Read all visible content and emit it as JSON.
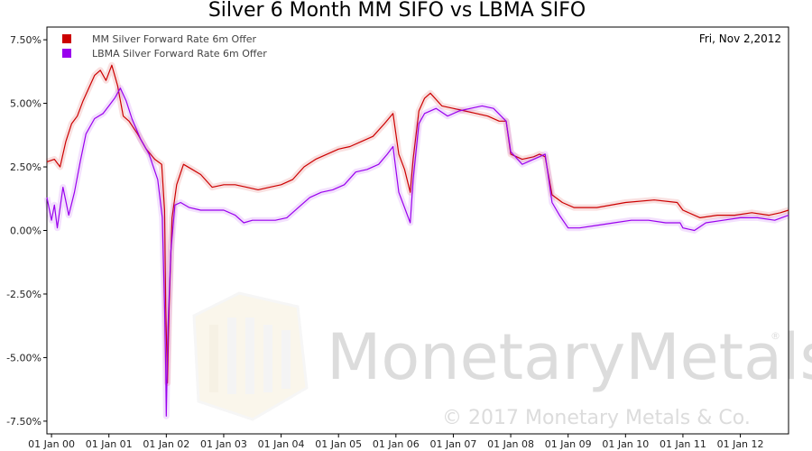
{
  "chart_data": {
    "type": "line",
    "title": "Silver 6 Month MM SIFO vs LBMA SIFO",
    "date_label": "Fri, Nov 2,2012",
    "xlabel": "",
    "ylabel": "",
    "x_range": [
      "1999-12-01",
      "2012-11-02"
    ],
    "ylim": [
      -8.0,
      8.0
    ],
    "y_ticks": [
      "7.50%",
      "5.00%",
      "2.50%",
      "0.00%",
      "-2.50%",
      "-5.00%",
      "-7.50%"
    ],
    "y_tick_values": [
      7.5,
      5.0,
      2.5,
      0.0,
      -2.5,
      -5.0,
      -7.5
    ],
    "x_ticks": [
      "01 Jan 00",
      "01 Jan 01",
      "01 Jan 02",
      "01 Jan 03",
      "01 Jan 04",
      "01 Jan 05",
      "01 Jan 06",
      "01 Jan 07",
      "01 Jan 08",
      "01 Jan 09",
      "01 Jan 10",
      "01 Jan 11",
      "01 Jan 12"
    ],
    "x_tick_values": [
      2000,
      2001,
      2002,
      2003,
      2004,
      2005,
      2006,
      2007,
      2008,
      2009,
      2010,
      2011,
      2012
    ],
    "legend_position": "top-left",
    "grid": false,
    "series": [
      {
        "name": "MM Silver Forward Rate 6m Offer",
        "color": "#cc0000",
        "points": [
          [
            1999.92,
            2.7
          ],
          [
            2000.05,
            2.8
          ],
          [
            2000.15,
            2.5
          ],
          [
            2000.25,
            3.5
          ],
          [
            2000.35,
            4.2
          ],
          [
            2000.45,
            4.5
          ],
          [
            2000.55,
            5.1
          ],
          [
            2000.65,
            5.6
          ],
          [
            2000.75,
            6.1
          ],
          [
            2000.85,
            6.3
          ],
          [
            2000.95,
            5.9
          ],
          [
            2001.05,
            6.5
          ],
          [
            2001.15,
            5.7
          ],
          [
            2001.25,
            4.5
          ],
          [
            2001.35,
            4.3
          ],
          [
            2001.5,
            3.8
          ],
          [
            2001.65,
            3.2
          ],
          [
            2001.8,
            2.8
          ],
          [
            2001.92,
            2.6
          ],
          [
            2001.97,
            0.8
          ],
          [
            2001.99,
            -3.0
          ],
          [
            2002.02,
            -6.0
          ],
          [
            2002.05,
            -3.0
          ],
          [
            2002.1,
            0.5
          ],
          [
            2002.18,
            1.8
          ],
          [
            2002.3,
            2.6
          ],
          [
            2002.45,
            2.4
          ],
          [
            2002.6,
            2.2
          ],
          [
            2002.8,
            1.7
          ],
          [
            2003.0,
            1.8
          ],
          [
            2003.2,
            1.8
          ],
          [
            2003.4,
            1.7
          ],
          [
            2003.6,
            1.6
          ],
          [
            2003.8,
            1.7
          ],
          [
            2004.0,
            1.8
          ],
          [
            2004.2,
            2.0
          ],
          [
            2004.4,
            2.5
          ],
          [
            2004.6,
            2.8
          ],
          [
            2004.8,
            3.0
          ],
          [
            2005.0,
            3.2
          ],
          [
            2005.2,
            3.3
          ],
          [
            2005.4,
            3.5
          ],
          [
            2005.6,
            3.7
          ],
          [
            2005.8,
            4.2
          ],
          [
            2005.95,
            4.6
          ],
          [
            2006.05,
            3.0
          ],
          [
            2006.15,
            2.4
          ],
          [
            2006.25,
            1.5
          ],
          [
            2006.3,
            2.8
          ],
          [
            2006.4,
            4.7
          ],
          [
            2006.5,
            5.2
          ],
          [
            2006.6,
            5.4
          ],
          [
            2006.8,
            4.9
          ],
          [
            2007.0,
            4.8
          ],
          [
            2007.2,
            4.7
          ],
          [
            2007.4,
            4.6
          ],
          [
            2007.6,
            4.5
          ],
          [
            2007.8,
            4.3
          ],
          [
            2007.92,
            4.3
          ],
          [
            2008.0,
            3.0
          ],
          [
            2008.2,
            2.8
          ],
          [
            2008.4,
            2.9
          ],
          [
            2008.5,
            3.0
          ],
          [
            2008.6,
            2.9
          ],
          [
            2008.72,
            1.4
          ],
          [
            2008.9,
            1.1
          ],
          [
            2009.1,
            0.9
          ],
          [
            2009.5,
            0.9
          ],
          [
            2010.0,
            1.1
          ],
          [
            2010.5,
            1.2
          ],
          [
            2010.9,
            1.1
          ],
          [
            2011.0,
            0.8
          ],
          [
            2011.3,
            0.5
          ],
          [
            2011.6,
            0.6
          ],
          [
            2011.9,
            0.6
          ],
          [
            2012.2,
            0.7
          ],
          [
            2012.5,
            0.6
          ],
          [
            2012.7,
            0.7
          ],
          [
            2012.84,
            0.8
          ]
        ]
      },
      {
        "name": "LBMA Silver Forward Rate 6m Offer",
        "color": "#9900ee",
        "points": [
          [
            1999.92,
            1.3
          ],
          [
            2000.0,
            0.4
          ],
          [
            2000.05,
            1.0
          ],
          [
            2000.1,
            0.1
          ],
          [
            2000.2,
            1.7
          ],
          [
            2000.3,
            0.6
          ],
          [
            2000.4,
            1.5
          ],
          [
            2000.5,
            2.7
          ],
          [
            2000.6,
            3.8
          ],
          [
            2000.75,
            4.4
          ],
          [
            2000.9,
            4.6
          ],
          [
            2001.0,
            4.9
          ],
          [
            2001.1,
            5.2
          ],
          [
            2001.2,
            5.6
          ],
          [
            2001.3,
            5.1
          ],
          [
            2001.4,
            4.4
          ],
          [
            2001.55,
            3.6
          ],
          [
            2001.7,
            3.0
          ],
          [
            2001.85,
            2.0
          ],
          [
            2001.93,
            0.5
          ],
          [
            2001.97,
            -3.0
          ],
          [
            2001.99,
            -5.5
          ],
          [
            2002.0,
            -7.3
          ],
          [
            2002.03,
            -3.8
          ],
          [
            2002.08,
            -0.8
          ],
          [
            2002.15,
            1.0
          ],
          [
            2002.25,
            1.1
          ],
          [
            2002.4,
            0.9
          ],
          [
            2002.6,
            0.8
          ],
          [
            2002.8,
            0.8
          ],
          [
            2003.0,
            0.8
          ],
          [
            2003.2,
            0.6
          ],
          [
            2003.35,
            0.3
          ],
          [
            2003.5,
            0.4
          ],
          [
            2003.7,
            0.4
          ],
          [
            2003.9,
            0.4
          ],
          [
            2004.1,
            0.5
          ],
          [
            2004.3,
            0.9
          ],
          [
            2004.5,
            1.3
          ],
          [
            2004.7,
            1.5
          ],
          [
            2004.9,
            1.6
          ],
          [
            2005.1,
            1.8
          ],
          [
            2005.3,
            2.3
          ],
          [
            2005.5,
            2.4
          ],
          [
            2005.7,
            2.6
          ],
          [
            2005.85,
            3.0
          ],
          [
            2005.95,
            3.3
          ],
          [
            2006.05,
            1.5
          ],
          [
            2006.15,
            0.9
          ],
          [
            2006.25,
            0.3
          ],
          [
            2006.3,
            2.0
          ],
          [
            2006.4,
            4.2
          ],
          [
            2006.5,
            4.6
          ],
          [
            2006.7,
            4.8
          ],
          [
            2006.9,
            4.5
          ],
          [
            2007.1,
            4.7
          ],
          [
            2007.3,
            4.8
          ],
          [
            2007.5,
            4.9
          ],
          [
            2007.7,
            4.8
          ],
          [
            2007.92,
            4.3
          ],
          [
            2008.0,
            3.1
          ],
          [
            2008.2,
            2.6
          ],
          [
            2008.4,
            2.8
          ],
          [
            2008.6,
            3.0
          ],
          [
            2008.72,
            1.1
          ],
          [
            2008.85,
            0.6
          ],
          [
            2009.0,
            0.1
          ],
          [
            2009.2,
            0.1
          ],
          [
            2009.5,
            0.2
          ],
          [
            2009.8,
            0.3
          ],
          [
            2010.1,
            0.4
          ],
          [
            2010.4,
            0.4
          ],
          [
            2010.7,
            0.3
          ],
          [
            2010.95,
            0.3
          ],
          [
            2011.0,
            0.1
          ],
          [
            2011.2,
            0.0
          ],
          [
            2011.4,
            0.3
          ],
          [
            2011.7,
            0.4
          ],
          [
            2012.0,
            0.5
          ],
          [
            2012.3,
            0.5
          ],
          [
            2012.6,
            0.4
          ],
          [
            2012.84,
            0.6
          ]
        ]
      }
    ]
  },
  "watermark": {
    "brand_text": "MonetaryMetals",
    "registered_mark": "®",
    "copyright_text": "© 2017 Monetary Metals & Co."
  }
}
